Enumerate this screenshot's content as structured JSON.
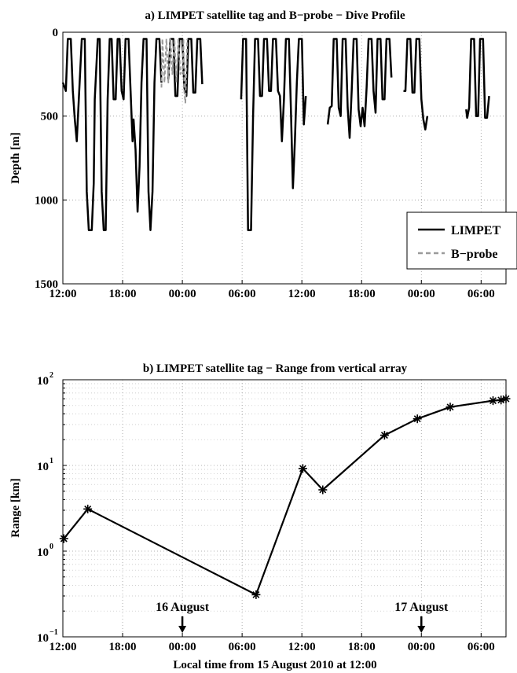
{
  "chart_data": [
    {
      "type": "line",
      "title": "a) LIMPET satellite tag and B−probe − Dive Profile",
      "xlabel": "",
      "ylabel": "Depth [m]",
      "x_unit": "hours after 15 August 2010 12:00",
      "xlim": [
        0,
        44.5
      ],
      "ylim": [
        1500,
        0
      ],
      "y_inverted": true,
      "xticks": [
        0,
        6,
        12,
        18,
        24,
        30,
        36,
        42
      ],
      "xticklabels": [
        "12:00",
        "18:00",
        "00:00",
        "06:00",
        "12:00",
        "18:00",
        "00:00",
        "06:00"
      ],
      "yticks": [
        0,
        500,
        1000,
        1500
      ],
      "yticklabels": [
        "0",
        "500",
        "1000",
        "1500"
      ],
      "grid": true,
      "legend": "lower right",
      "series": [
        {
          "name": "LIMPET",
          "color": "#000000",
          "style": "solid",
          "segments": [
            [
              [
                0.0,
                300
              ],
              [
                0.3,
                350
              ],
              [
                0.5,
                40
              ],
              [
                0.8,
                40
              ],
              [
                1.0,
                350
              ],
              [
                1.2,
                520
              ],
              [
                1.4,
                650
              ],
              [
                1.6,
                400
              ],
              [
                1.9,
                40
              ],
              [
                2.2,
                40
              ],
              [
                2.4,
                950
              ],
              [
                2.6,
                1180
              ],
              [
                2.9,
                1180
              ],
              [
                3.1,
                900
              ],
              [
                3.2,
                400
              ],
              [
                3.5,
                40
              ],
              [
                3.7,
                40
              ],
              [
                3.9,
                950
              ],
              [
                4.1,
                1180
              ],
              [
                4.3,
                1180
              ],
              [
                4.5,
                400
              ],
              [
                4.7,
                40
              ],
              [
                4.9,
                40
              ],
              [
                5.1,
                400
              ],
              [
                5.3,
                400
              ],
              [
                5.5,
                40
              ],
              [
                5.7,
                40
              ],
              [
                5.9,
                350
              ],
              [
                6.1,
                400
              ],
              [
                6.3,
                40
              ],
              [
                6.6,
                40
              ],
              [
                6.8,
                350
              ],
              [
                7.0,
                650
              ],
              [
                7.1,
                520
              ],
              [
                7.3,
                700
              ],
              [
                7.5,
                1070
              ],
              [
                7.7,
                800
              ],
              [
                7.9,
                300
              ],
              [
                8.1,
                40
              ],
              [
                8.4,
                40
              ],
              [
                8.6,
                950
              ],
              [
                8.8,
                1180
              ],
              [
                9.0,
                950
              ],
              [
                9.2,
                300
              ],
              [
                9.4,
                40
              ],
              [
                9.7,
                40
              ],
              [
                9.9,
                300
              ]
            ],
            [
              [
                10.6,
                280
              ],
              [
                10.8,
                40
              ],
              [
                11.1,
                40
              ],
              [
                11.3,
                380
              ],
              [
                11.5,
                380
              ],
              [
                11.7,
                40
              ],
              [
                12.0,
                40
              ],
              [
                12.2,
                330
              ],
              [
                12.4,
                380
              ],
              [
                12.6,
                40
              ],
              [
                12.9,
                40
              ],
              [
                13.1,
                360
              ],
              [
                13.3,
                360
              ],
              [
                13.5,
                40
              ],
              [
                13.8,
                40
              ],
              [
                14.0,
                310
              ]
            ],
            [
              [
                17.9,
                400
              ],
              [
                18.1,
                40
              ],
              [
                18.4,
                40
              ],
              [
                18.6,
                1180
              ],
              [
                18.9,
                1180
              ],
              [
                19.1,
                500
              ],
              [
                19.3,
                40
              ],
              [
                19.6,
                40
              ],
              [
                19.8,
                380
              ],
              [
                20.0,
                380
              ],
              [
                20.2,
                40
              ],
              [
                20.5,
                40
              ],
              [
                20.7,
                350
              ],
              [
                20.9,
                350
              ],
              [
                21.1,
                40
              ],
              [
                21.4,
                40
              ],
              [
                21.6,
                350
              ],
              [
                21.8,
                380
              ],
              [
                22.0,
                650
              ],
              [
                22.2,
                400
              ],
              [
                22.4,
                40
              ],
              [
                22.7,
                40
              ],
              [
                22.9,
                450
              ],
              [
                23.1,
                930
              ],
              [
                23.3,
                650
              ],
              [
                23.5,
                300
              ],
              [
                23.7,
                40
              ],
              [
                24.0,
                40
              ],
              [
                24.2,
                550
              ],
              [
                24.4,
                380
              ]
            ],
            [
              [
                26.6,
                550
              ],
              [
                26.8,
                450
              ],
              [
                27.0,
                440
              ],
              [
                27.2,
                40
              ],
              [
                27.5,
                40
              ],
              [
                27.7,
                450
              ],
              [
                27.9,
                500
              ],
              [
                28.1,
                40
              ],
              [
                28.4,
                40
              ],
              [
                28.6,
                450
              ],
              [
                28.8,
                630
              ],
              [
                29.0,
                350
              ],
              [
                29.2,
                40
              ],
              [
                29.5,
                40
              ],
              [
                29.7,
                460
              ],
              [
                29.9,
                560
              ],
              [
                30.1,
                450
              ],
              [
                30.3,
                560
              ],
              [
                30.5,
                330
              ],
              [
                30.7,
                40
              ],
              [
                31.0,
                40
              ],
              [
                31.2,
                350
              ],
              [
                31.4,
                480
              ],
              [
                31.6,
                40
              ],
              [
                31.9,
                40
              ],
              [
                32.1,
                400
              ],
              [
                32.3,
                400
              ],
              [
                32.5,
                40
              ],
              [
                32.8,
                40
              ],
              [
                33.0,
                270
              ]
            ],
            [
              [
                34.2,
                350
              ],
              [
                34.4,
                350
              ],
              [
                34.6,
                40
              ],
              [
                34.9,
                40
              ],
              [
                35.1,
                360
              ],
              [
                35.3,
                360
              ],
              [
                35.5,
                40
              ],
              [
                35.8,
                40
              ],
              [
                36.0,
                400
              ],
              [
                36.2,
                520
              ],
              [
                36.4,
                580
              ],
              [
                36.6,
                500
              ]
            ],
            [
              [
                40.5,
                460
              ],
              [
                40.6,
                510
              ],
              [
                40.8,
                450
              ],
              [
                41.0,
                40
              ],
              [
                41.3,
                40
              ],
              [
                41.5,
                500
              ],
              [
                41.7,
                500
              ],
              [
                41.9,
                40
              ],
              [
                42.2,
                40
              ],
              [
                42.4,
                510
              ],
              [
                42.6,
                510
              ],
              [
                42.8,
                380
              ]
            ]
          ]
        },
        {
          "name": "B−probe",
          "color": "#9a9a9a",
          "style": "dashed",
          "segments": [
            [
              [
                9.9,
                330
              ],
              [
                10.0,
                40
              ],
              [
                10.2,
                300
              ],
              [
                10.4,
                40
              ],
              [
                10.6,
                300
              ],
              [
                10.8,
                40
              ],
              [
                11.0,
                250
              ],
              [
                11.2,
                40
              ],
              [
                11.4,
                300
              ],
              [
                11.6,
                40
              ],
              [
                11.8,
                250
              ],
              [
                12.0,
                220
              ],
              [
                12.1,
                40
              ],
              [
                12.2,
                350
              ],
              [
                12.3,
                420
              ],
              [
                12.5,
                40
              ]
            ]
          ]
        }
      ]
    },
    {
      "type": "line",
      "title": "b) LIMPET satellite tag − Range from vertical array",
      "xlabel": "Local time from 15 August 2010 at 12:00",
      "ylabel": "Range [km]",
      "x_unit": "hours after 15 August 2010 12:00",
      "xlim": [
        0,
        44.5
      ],
      "ylim": [
        0.1,
        100
      ],
      "yscale": "log",
      "xticks": [
        0,
        6,
        12,
        18,
        24,
        30,
        36,
        42
      ],
      "xticklabels": [
        "12:00",
        "18:00",
        "00:00",
        "06:00",
        "12:00",
        "18:00",
        "00:00",
        "06:00"
      ],
      "yticks": [
        0.1,
        1,
        10,
        100
      ],
      "yticklabels": [
        [
          "10",
          "−1"
        ],
        [
          "10",
          "0"
        ],
        [
          "10",
          "1"
        ],
        [
          "10",
          "2"
        ]
      ],
      "grid": true,
      "marker": "*",
      "series": [
        {
          "color": "#000000",
          "x": [
            0.1,
            2.5,
            19.4,
            24.1,
            26.1,
            32.3,
            35.6,
            38.9,
            43.2,
            44.0,
            44.5
          ],
          "y": [
            1.4,
            3.1,
            0.31,
            9.2,
            5.2,
            22.5,
            35,
            48,
            57,
            58,
            60
          ]
        }
      ],
      "annotations": [
        {
          "text": "16 August",
          "x": 12.0
        },
        {
          "text": "17 August",
          "x": 36.0
        }
      ]
    }
  ]
}
